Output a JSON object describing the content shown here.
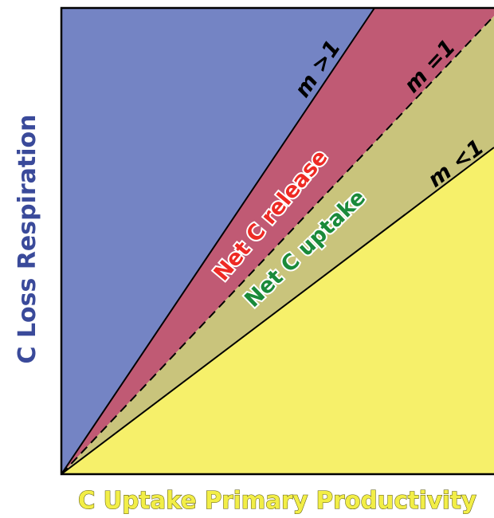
{
  "axes": {
    "x_label": "C Uptake Primary Productivity",
    "y_label": "C Loss Respiration"
  },
  "lines": {
    "steep": {
      "label": "m >1",
      "stroke": "#000000",
      "dashed": false
    },
    "equal": {
      "label": "m =1",
      "stroke": "#000000",
      "dashed": true
    },
    "shallow": {
      "label": "m <1",
      "stroke": "#000000",
      "dashed": false
    }
  },
  "zones": {
    "release": {
      "label": "Net C release",
      "color": "#ee2a24"
    },
    "uptake": {
      "label": "Net C uptake",
      "color": "#1a8a3a"
    }
  },
  "colors": {
    "blue_region": "#7484c4",
    "red_region": "#c05a74",
    "olive_region": "#c9c47c",
    "yellow_region": "#f6f06a",
    "y_label": "#3a4a9a",
    "x_label": "#f2ee47"
  }
}
